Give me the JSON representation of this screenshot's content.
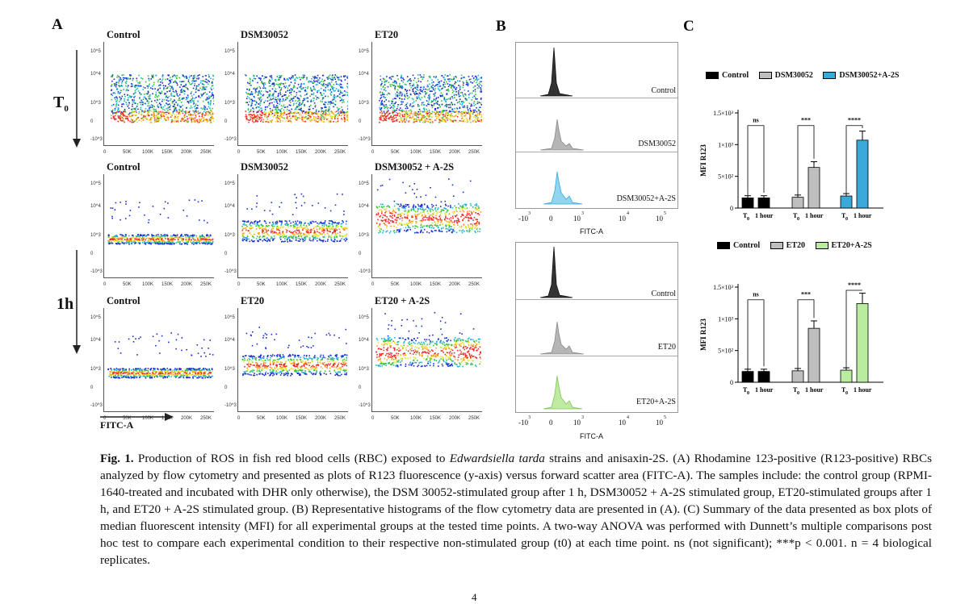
{
  "panel_letters": {
    "a": "A",
    "b": "B",
    "c": "C"
  },
  "row_labels": {
    "t0_main": "T",
    "t0_sub": "0",
    "h1": "1h"
  },
  "panel_a": {
    "titles": [
      "Control",
      "DSM30052",
      "ET20",
      "Control",
      "DSM30052",
      "DSM30052 + A-2S",
      "Control",
      "ET20",
      "ET20 + A-2S"
    ],
    "xticks": [
      "0",
      "50K",
      "100K",
      "150K",
      "200K",
      "250K"
    ],
    "yticks": [
      "10^5",
      "10^4",
      "10^3",
      "0",
      "-10^3"
    ],
    "x_axis_label": "FITC-A"
  },
  "panel_b": {
    "top_labels": [
      "Control",
      "DSM30052",
      "DSM30052+A-2S"
    ],
    "bottom_labels": [
      "Control",
      "ET20",
      "ET20+A-2S"
    ],
    "xticks": [
      "-10",
      "3",
      "0",
      "10",
      "3",
      "10",
      "4",
      "10",
      "5"
    ],
    "x_axis_label": "FITC-A",
    "colors": [
      "#333333",
      "#aaaaaa",
      "#5bc0de",
      "#333333",
      "#aaaaaa",
      "#a8e07a"
    ]
  },
  "chart_data": [
    {
      "type": "bar",
      "title": "",
      "ylabel": "MFI R123",
      "ylim": [
        0,
        1500
      ],
      "yticks": [
        "0",
        "5×10²",
        "1×10³",
        "1.5×10³"
      ],
      "ytick_values": [
        0,
        500,
        1000,
        1500
      ],
      "time_labels": [
        "T",
        "1 hour"
      ],
      "time_sub": "0",
      "categories": [
        "T0",
        "1 hour"
      ],
      "series": [
        {
          "name": "Control",
          "color": "#000000",
          "values": [
            160,
            160
          ]
        },
        {
          "name": "DSM30052",
          "color": "#bfbfbf",
          "values": [
            170,
            640
          ]
        },
        {
          "name": "DSM30052+A-2S",
          "color": "#3aa8d8",
          "values": [
            190,
            1070
          ]
        }
      ],
      "significance": [
        "ns",
        "***",
        "****"
      ]
    },
    {
      "type": "bar",
      "title": "",
      "ylabel": "MFI R123",
      "ylim": [
        0,
        1500
      ],
      "yticks": [
        "0",
        "5×10²",
        "1×10³",
        "1.5×10³"
      ],
      "ytick_values": [
        0,
        500,
        1000,
        1500
      ],
      "time_labels": [
        "T",
        "1 hour"
      ],
      "time_sub": "0",
      "categories": [
        "T0",
        "1 hour"
      ],
      "series": [
        {
          "name": "Control",
          "color": "#000000",
          "values": [
            170,
            170
          ]
        },
        {
          "name": "ET20",
          "color": "#bfbfbf",
          "values": [
            180,
            850
          ]
        },
        {
          "name": "ET20+A-2S",
          "color": "#b9ec9e",
          "values": [
            190,
            1240
          ]
        }
      ],
      "significance": [
        "ns",
        "***",
        "****"
      ]
    }
  ],
  "caption": {
    "fig_label": "Fig. 1.",
    "text_1": " Production of ROS in fish red blood cells (RBC) exposed to ",
    "species": "Edwardsiella tarda",
    "text_2": " strains and anisaxin-2S. (A) Rhodamine 123-positive (R123-positive) RBCs analyzed by flow cytometry and presented as plots of R123 fluorescence (y-axis) versus forward scatter area (FITC-A). The samples include: the control group (RPMI-1640-treated and incubated with DHR only otherwise), the DSM 30052-stimulated group after 1 h, DSM30052 + A-2S stimulated group, ET20-stimulated groups after 1 h, and ET20 + A-2S stimulated group. (B) Representative histograms of the flow cytometry data are presented in (A). (C) Summary of the data presented as box plots of median fluorescent intensity (MFI) for all experimental groups at the tested time points. A two-way ANOVA was performed with Dunnett’s multiple comparisons post hoc test to compare each experimental condition to their respective non-stimulated group (t0) at each time point. ns (not significant); ***p < 0.001. n = 4 biological replicates."
  },
  "page_number": "4"
}
